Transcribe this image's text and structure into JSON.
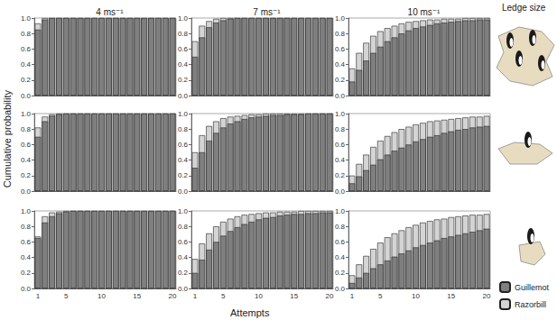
{
  "chart_data": [
    {
      "type": "bar",
      "title": "4 ms⁻¹",
      "tick_labels": "y",
      "categories": [
        "1",
        null,
        null,
        null,
        "5",
        null,
        null,
        null,
        null,
        "10",
        null,
        null,
        null,
        null,
        "15",
        null,
        null,
        null,
        null,
        "20"
      ],
      "ylim": [
        0,
        1
      ],
      "yticks": [
        {
          "value": 0,
          "label": "0.0"
        },
        {
          "value": 0.2,
          "label": "0.2"
        },
        {
          "value": 0.4,
          "label": "0.4"
        },
        {
          "value": 0.6,
          "label": "0.6"
        },
        {
          "value": 0.8,
          "label": "0.8"
        },
        {
          "value": 1,
          "label": "1.0"
        }
      ],
      "series": [
        {
          "name": "Guillemot",
          "color": "#7f7f7f",
          "values": [
            0.85,
            0.98,
            1,
            1,
            1,
            1,
            1,
            1,
            1,
            1,
            1,
            1,
            1,
            1,
            1,
            1,
            1,
            1,
            1,
            1
          ]
        },
        {
          "name": "Razorbill",
          "color": "#d4d4d4",
          "values": [
            0.93,
            1,
            1,
            1,
            1,
            1,
            1,
            1,
            1,
            1,
            1,
            1,
            1,
            1,
            1,
            1,
            1,
            1,
            1,
            1
          ]
        }
      ]
    },
    {
      "type": "bar",
      "title": "7 ms⁻¹",
      "tick_labels": "y",
      "categories": [
        "1",
        null,
        null,
        null,
        "5",
        null,
        null,
        null,
        null,
        "10",
        null,
        null,
        null,
        null,
        "15",
        null,
        null,
        null,
        null,
        "20"
      ],
      "ylim": [
        0,
        1
      ],
      "yticks": [
        {
          "value": 0,
          "label": "0.0"
        },
        {
          "value": 0.2,
          "label": "0.2"
        },
        {
          "value": 0.4,
          "label": "0.4"
        },
        {
          "value": 0.6,
          "label": "0.6"
        },
        {
          "value": 0.8,
          "label": "0.8"
        },
        {
          "value": 1,
          "label": "1.0"
        }
      ],
      "series": [
        {
          "name": "Guillemot",
          "color": "#7f7f7f",
          "values": [
            0.5,
            0.75,
            0.88,
            0.94,
            0.97,
            0.99,
            1,
            1,
            1,
            1,
            1,
            1,
            1,
            1,
            1,
            1,
            1,
            1,
            1,
            1
          ]
        },
        {
          "name": "Razorbill",
          "color": "#d4d4d4",
          "values": [
            0.7,
            0.9,
            0.96,
            0.99,
            1,
            1,
            1,
            1,
            1,
            1,
            1,
            1,
            1,
            1,
            1,
            1,
            1,
            1,
            1,
            1
          ]
        }
      ]
    },
    {
      "type": "bar",
      "title": "10 ms⁻¹",
      "tick_labels": "y",
      "categories": [
        "1",
        null,
        null,
        null,
        "5",
        null,
        null,
        null,
        null,
        "10",
        null,
        null,
        null,
        null,
        "15",
        null,
        null,
        null,
        null,
        "20"
      ],
      "ylim": [
        0,
        1
      ],
      "yticks": [
        {
          "value": 0,
          "label": "0.0"
        },
        {
          "value": 0.2,
          "label": "0.2"
        },
        {
          "value": 0.4,
          "label": "0.4"
        },
        {
          "value": 0.6,
          "label": "0.6"
        },
        {
          "value": 0.8,
          "label": "0.8"
        },
        {
          "value": 1,
          "label": "1.0"
        }
      ],
      "series": [
        {
          "name": "Guillemot",
          "color": "#7f7f7f",
          "values": [
            0.18,
            0.33,
            0.45,
            0.55,
            0.63,
            0.7,
            0.75,
            0.8,
            0.84,
            0.87,
            0.89,
            0.91,
            0.93,
            0.94,
            0.95,
            0.96,
            0.97,
            0.97,
            0.98,
            0.98
          ]
        },
        {
          "name": "Razorbill",
          "color": "#d4d4d4",
          "values": [
            0.35,
            0.55,
            0.68,
            0.77,
            0.83,
            0.87,
            0.9,
            0.93,
            0.95,
            0.96,
            0.97,
            0.98,
            0.98,
            0.99,
            0.99,
            0.99,
            1,
            1,
            1,
            1
          ]
        }
      ]
    },
    {
      "type": "bar",
      "tick_labels": "y",
      "categories": [
        "1",
        null,
        null,
        null,
        "5",
        null,
        null,
        null,
        null,
        "10",
        null,
        null,
        null,
        null,
        "15",
        null,
        null,
        null,
        null,
        "20"
      ],
      "ylim": [
        0,
        1
      ],
      "yticks": [
        {
          "value": 0,
          "label": "0.0"
        },
        {
          "value": 0.2,
          "label": "0.2"
        },
        {
          "value": 0.4,
          "label": "0.4"
        },
        {
          "value": 0.6,
          "label": "0.6"
        },
        {
          "value": 0.8,
          "label": "0.8"
        },
        {
          "value": 1,
          "label": "1.0"
        }
      ],
      "series": [
        {
          "name": "Guillemot",
          "color": "#7f7f7f",
          "values": [
            0.7,
            0.9,
            0.97,
            0.99,
            1,
            1,
            1,
            1,
            1,
            1,
            1,
            1,
            1,
            1,
            1,
            1,
            1,
            1,
            1,
            1
          ]
        },
        {
          "name": "Razorbill",
          "color": "#d4d4d4",
          "values": [
            0.82,
            0.96,
            0.99,
            1,
            1,
            1,
            1,
            1,
            1,
            1,
            1,
            1,
            1,
            1,
            1,
            1,
            1,
            1,
            1,
            1
          ]
        }
      ]
    },
    {
      "type": "bar",
      "tick_labels": "y",
      "categories": [
        "1",
        null,
        null,
        null,
        "5",
        null,
        null,
        null,
        null,
        "10",
        null,
        null,
        null,
        null,
        "15",
        null,
        null,
        null,
        null,
        "20"
      ],
      "ylim": [
        0,
        1
      ],
      "yticks": [
        {
          "value": 0,
          "label": "0.0"
        },
        {
          "value": 0.2,
          "label": "0.2"
        },
        {
          "value": 0.4,
          "label": "0.4"
        },
        {
          "value": 0.6,
          "label": "0.6"
        },
        {
          "value": 0.8,
          "label": "0.8"
        },
        {
          "value": 1,
          "label": "1.0"
        }
      ],
      "series": [
        {
          "name": "Guillemot",
          "color": "#7f7f7f",
          "values": [
            0.3,
            0.5,
            0.65,
            0.75,
            0.82,
            0.87,
            0.9,
            0.93,
            0.95,
            0.96,
            0.97,
            0.98,
            0.98,
            0.99,
            0.99,
            0.99,
            1,
            1,
            1,
            1
          ]
        },
        {
          "name": "Razorbill",
          "color": "#d4d4d4",
          "values": [
            0.5,
            0.72,
            0.84,
            0.9,
            0.94,
            0.96,
            0.97,
            0.98,
            0.99,
            0.99,
            1,
            1,
            1,
            1,
            1,
            1,
            1,
            1,
            1,
            1
          ]
        }
      ]
    },
    {
      "type": "bar",
      "tick_labels": "y",
      "categories": [
        "1",
        null,
        null,
        null,
        "5",
        null,
        null,
        null,
        null,
        "10",
        null,
        null,
        null,
        null,
        "15",
        null,
        null,
        null,
        null,
        "20"
      ],
      "ylim": [
        0,
        1
      ],
      "yticks": [
        {
          "value": 0,
          "label": "0.0"
        },
        {
          "value": 0.2,
          "label": "0.2"
        },
        {
          "value": 0.4,
          "label": "0.4"
        },
        {
          "value": 0.6,
          "label": "0.6"
        },
        {
          "value": 0.8,
          "label": "0.8"
        },
        {
          "value": 1,
          "label": "1.0"
        }
      ],
      "series": [
        {
          "name": "Guillemot",
          "color": "#7f7f7f",
          "values": [
            0.1,
            0.19,
            0.27,
            0.34,
            0.41,
            0.47,
            0.52,
            0.56,
            0.6,
            0.64,
            0.67,
            0.7,
            0.72,
            0.75,
            0.77,
            0.79,
            0.8,
            0.82,
            0.83,
            0.84
          ]
        },
        {
          "name": "Razorbill",
          "color": "#d4d4d4",
          "values": [
            0.2,
            0.35,
            0.47,
            0.57,
            0.65,
            0.71,
            0.76,
            0.8,
            0.83,
            0.86,
            0.88,
            0.9,
            0.91,
            0.92,
            0.93,
            0.94,
            0.95,
            0.96,
            0.96,
            0.97
          ]
        }
      ]
    },
    {
      "type": "bar",
      "categories": [
        "1",
        null,
        null,
        null,
        "5",
        null,
        null,
        null,
        null,
        "10",
        null,
        null,
        null,
        null,
        "15",
        null,
        null,
        null,
        null,
        "20"
      ],
      "ylim": [
        0,
        1
      ],
      "yticks": [
        {
          "value": 0,
          "label": "0.0"
        },
        {
          "value": 0.2,
          "label": "0.2"
        },
        {
          "value": 0.4,
          "label": "0.4"
        },
        {
          "value": 0.6,
          "label": "0.6"
        },
        {
          "value": 0.8,
          "label": "0.8"
        },
        {
          "value": 1,
          "label": "1.0"
        }
      ],
      "series": [
        {
          "name": "Guillemot",
          "color": "#7f7f7f",
          "values": [
            0.65,
            0.85,
            0.93,
            0.97,
            0.99,
            1,
            1,
            1,
            1,
            1,
            1,
            1,
            1,
            1,
            1,
            1,
            1,
            1,
            1,
            1
          ]
        },
        {
          "name": "Razorbill",
          "color": "#d4d4d4",
          "values": [
            0.67,
            0.93,
            0.98,
            0.99,
            1,
            1,
            1,
            1,
            1,
            1,
            1,
            1,
            1,
            1,
            1,
            1,
            1,
            1,
            1,
            1
          ]
        }
      ]
    },
    {
      "type": "bar",
      "categories": [
        "1",
        null,
        null,
        null,
        "5",
        null,
        null,
        null,
        null,
        "10",
        null,
        null,
        null,
        null,
        "15",
        null,
        null,
        null,
        null,
        "20"
      ],
      "ylim": [
        0,
        1
      ],
      "yticks": [
        {
          "value": 0,
          "label": "0.0"
        },
        {
          "value": 0.2,
          "label": "0.2"
        },
        {
          "value": 0.4,
          "label": "0.4"
        },
        {
          "value": 0.6,
          "label": "0.6"
        },
        {
          "value": 0.8,
          "label": "0.8"
        },
        {
          "value": 1,
          "label": "1.0"
        }
      ],
      "series": [
        {
          "name": "Guillemot",
          "color": "#7f7f7f",
          "values": [
            0.2,
            0.37,
            0.5,
            0.6,
            0.68,
            0.74,
            0.79,
            0.83,
            0.86,
            0.89,
            0.91,
            0.92,
            0.94,
            0.95,
            0.96,
            0.96,
            0.97,
            0.97,
            0.98,
            0.98
          ]
        },
        {
          "name": "Razorbill",
          "color": "#d4d4d4",
          "values": [
            0.38,
            0.58,
            0.71,
            0.8,
            0.86,
            0.9,
            0.93,
            0.95,
            0.96,
            0.97,
            0.98,
            0.98,
            0.99,
            0.99,
            0.99,
            1,
            1,
            1,
            1,
            1
          ]
        }
      ]
    },
    {
      "type": "bar",
      "categories": [
        "1",
        null,
        null,
        null,
        "5",
        null,
        null,
        null,
        null,
        "10",
        null,
        null,
        null,
        null,
        "15",
        null,
        null,
        null,
        null,
        "20"
      ],
      "ylim": [
        0,
        1
      ],
      "yticks": [
        {
          "value": 0,
          "label": "0.0"
        },
        {
          "value": 0.2,
          "label": "0.2"
        },
        {
          "value": 0.4,
          "label": "0.4"
        },
        {
          "value": 0.6,
          "label": "0.6"
        },
        {
          "value": 0.8,
          "label": "0.8"
        },
        {
          "value": 1,
          "label": "1.0"
        }
      ],
      "series": [
        {
          "name": "Guillemot",
          "color": "#7f7f7f",
          "values": [
            0.07,
            0.14,
            0.2,
            0.26,
            0.31,
            0.36,
            0.41,
            0.45,
            0.49,
            0.53,
            0.56,
            0.59,
            0.62,
            0.65,
            0.67,
            0.69,
            0.71,
            0.73,
            0.75,
            0.77
          ]
        },
        {
          "name": "Razorbill",
          "color": "#d4d4d4",
          "values": [
            0.17,
            0.31,
            0.42,
            0.51,
            0.59,
            0.66,
            0.71,
            0.75,
            0.79,
            0.82,
            0.85,
            0.87,
            0.89,
            0.9,
            0.92,
            0.93,
            0.94,
            0.95,
            0.95,
            0.96
          ]
        }
      ]
    }
  ],
  "figure": {
    "ylabel": "Cumulative probability",
    "xlabel": "Attempts",
    "row_header": "Ledge size",
    "legend": "lower right"
  }
}
